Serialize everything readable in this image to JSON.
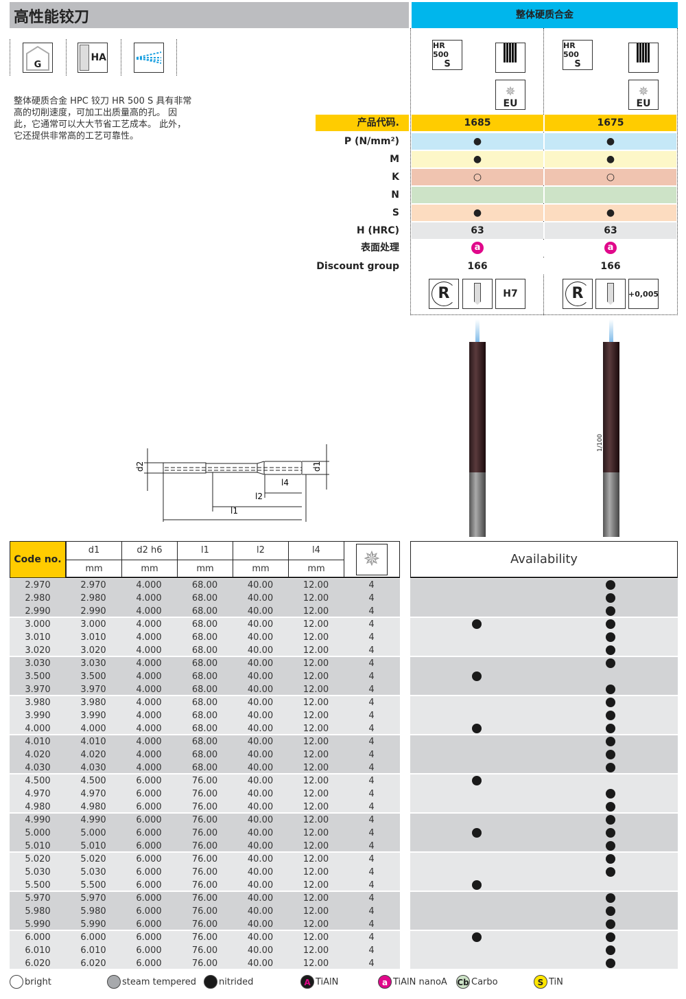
{
  "header": {
    "title": "高性能铰刀",
    "material_group": "整体硬质合金"
  },
  "feature_icons": [
    {
      "name": "guide-icon",
      "label": "G"
    },
    {
      "name": "shank-ha-icon",
      "label": "HA"
    },
    {
      "name": "coolant-icon",
      "label": ""
    }
  ],
  "description": [
    "整体硬质合金 HPC 铰刀 HR 500 S 具有非常",
    "高的切削速度，可加工出质量高的孔。 因",
    "此，它通常可以大大节省工艺成本。 此外，",
    "它还提供非常高的工艺可靠性。"
  ],
  "products": [
    {
      "series_badge": [
        "HR 500",
        "S"
      ],
      "std_label": "EU",
      "code": "1685",
      "P": "●",
      "M": "●",
      "K": "○",
      "N": "",
      "S": "●",
      "H": "63",
      "coating": "a",
      "discount": "166",
      "tolerance": "H7"
    },
    {
      "series_badge": [
        "HR 500",
        "S"
      ],
      "std_label": "EU",
      "code": "1675",
      "P": "●",
      "M": "●",
      "K": "○",
      "N": "",
      "S": "●",
      "H": "63",
      "coating": "a",
      "discount": "166",
      "tolerance": "+0,005"
    }
  ],
  "property_labels": {
    "code": "产品代码.",
    "P": "P (N/mm²)",
    "M": "M",
    "K": "K",
    "N": "N",
    "S": "S",
    "H": "H (HRC)",
    "surface": "表面处理",
    "discount": "Discount group"
  },
  "drawing_labels": {
    "d2": "d2",
    "d1": "d1",
    "l4": "l4",
    "l2": "l2",
    "l1": "l1",
    "tolerance_note": "1/100"
  },
  "table": {
    "code_header": "Code no.",
    "columns": [
      {
        "name": "d1",
        "unit": "mm"
      },
      {
        "name": "d2 h6",
        "unit": "mm"
      },
      {
        "name": "l1",
        "unit": "mm"
      },
      {
        "name": "l2",
        "unit": "mm"
      },
      {
        "name": "l4",
        "unit": "mm"
      }
    ],
    "availability_header": "Availability",
    "rows": [
      [
        "2.970",
        "2.970",
        "4.000",
        "68.00",
        "40.00",
        "12.00",
        "4",
        0,
        1
      ],
      [
        "2.980",
        "2.980",
        "4.000",
        "68.00",
        "40.00",
        "12.00",
        "4",
        0,
        1
      ],
      [
        "2.990",
        "2.990",
        "4.000",
        "68.00",
        "40.00",
        "12.00",
        "4",
        0,
        1
      ],
      [
        "3.000",
        "3.000",
        "4.000",
        "68.00",
        "40.00",
        "12.00",
        "4",
        1,
        1
      ],
      [
        "3.010",
        "3.010",
        "4.000",
        "68.00",
        "40.00",
        "12.00",
        "4",
        0,
        1
      ],
      [
        "3.020",
        "3.020",
        "4.000",
        "68.00",
        "40.00",
        "12.00",
        "4",
        0,
        1
      ],
      [
        "3.030",
        "3.030",
        "4.000",
        "68.00",
        "40.00",
        "12.00",
        "4",
        0,
        1
      ],
      [
        "3.500",
        "3.500",
        "4.000",
        "68.00",
        "40.00",
        "12.00",
        "4",
        1,
        0
      ],
      [
        "3.970",
        "3.970",
        "4.000",
        "68.00",
        "40.00",
        "12.00",
        "4",
        0,
        1
      ],
      [
        "3.980",
        "3.980",
        "4.000",
        "68.00",
        "40.00",
        "12.00",
        "4",
        0,
        1
      ],
      [
        "3.990",
        "3.990",
        "4.000",
        "68.00",
        "40.00",
        "12.00",
        "4",
        0,
        1
      ],
      [
        "4.000",
        "4.000",
        "4.000",
        "68.00",
        "40.00",
        "12.00",
        "4",
        1,
        1
      ],
      [
        "4.010",
        "4.010",
        "4.000",
        "68.00",
        "40.00",
        "12.00",
        "4",
        0,
        1
      ],
      [
        "4.020",
        "4.020",
        "4.000",
        "68.00",
        "40.00",
        "12.00",
        "4",
        0,
        1
      ],
      [
        "4.030",
        "4.030",
        "4.000",
        "68.00",
        "40.00",
        "12.00",
        "4",
        0,
        1
      ],
      [
        "4.500",
        "4.500",
        "6.000",
        "76.00",
        "40.00",
        "12.00",
        "4",
        1,
        0
      ],
      [
        "4.970",
        "4.970",
        "6.000",
        "76.00",
        "40.00",
        "12.00",
        "4",
        0,
        1
      ],
      [
        "4.980",
        "4.980",
        "6.000",
        "76.00",
        "40.00",
        "12.00",
        "4",
        0,
        1
      ],
      [
        "4.990",
        "4.990",
        "6.000",
        "76.00",
        "40.00",
        "12.00",
        "4",
        0,
        1
      ],
      [
        "5.000",
        "5.000",
        "6.000",
        "76.00",
        "40.00",
        "12.00",
        "4",
        1,
        1
      ],
      [
        "5.010",
        "5.010",
        "6.000",
        "76.00",
        "40.00",
        "12.00",
        "4",
        0,
        1
      ],
      [
        "5.020",
        "5.020",
        "6.000",
        "76.00",
        "40.00",
        "12.00",
        "4",
        0,
        1
      ],
      [
        "5.030",
        "5.030",
        "6.000",
        "76.00",
        "40.00",
        "12.00",
        "4",
        0,
        1
      ],
      [
        "5.500",
        "5.500",
        "6.000",
        "76.00",
        "40.00",
        "12.00",
        "4",
        1,
        0
      ],
      [
        "5.970",
        "5.970",
        "6.000",
        "76.00",
        "40.00",
        "12.00",
        "4",
        0,
        1
      ],
      [
        "5.980",
        "5.980",
        "6.000",
        "76.00",
        "40.00",
        "12.00",
        "4",
        0,
        1
      ],
      [
        "5.990",
        "5.990",
        "6.000",
        "76.00",
        "40.00",
        "12.00",
        "4",
        0,
        1
      ],
      [
        "6.000",
        "6.000",
        "6.000",
        "76.00",
        "40.00",
        "12.00",
        "4",
        1,
        1
      ],
      [
        "6.010",
        "6.010",
        "6.000",
        "76.00",
        "40.00",
        "12.00",
        "4",
        0,
        1
      ],
      [
        "6.020",
        "6.020",
        "6.000",
        "76.00",
        "40.00",
        "12.00",
        "4",
        0,
        1
      ]
    ]
  },
  "legend": [
    {
      "symbol": "",
      "label": "bright",
      "bg": "#ffffff",
      "fg": "#222"
    },
    {
      "symbol": "",
      "label": "steam tempered",
      "bg": "#a7a9ac",
      "fg": "#222"
    },
    {
      "symbol": "",
      "label": "nitrided",
      "bg": "#1a1a1a",
      "fg": "#fff"
    },
    {
      "symbol": "A",
      "label": "TiAlN",
      "bg": "#1a1a1a",
      "fg": "#e0088a"
    },
    {
      "symbol": "a",
      "label": "TiAlN nanoA",
      "bg": "#e0088a",
      "fg": "#fff"
    },
    {
      "symbol": "Cb",
      "label": "Carbo",
      "bg": "#cde3c7",
      "fg": "#222"
    },
    {
      "symbol": "S",
      "label": "TiN",
      "bg": "#ffe600",
      "fg": "#222"
    }
  ],
  "colors": {
    "header_blue": "#00b6ec",
    "code_yellow": "#ffcc00",
    "P": "#c5e8f7",
    "M": "#fdf7c8",
    "K": "#f0c4b0",
    "N": "#cde3c7",
    "S": "#fcdcc0",
    "H": "#e6e7e8",
    "row_dark": "#d2d3d5",
    "row_light": "#e6e7e8",
    "coating": "#e0088a"
  }
}
